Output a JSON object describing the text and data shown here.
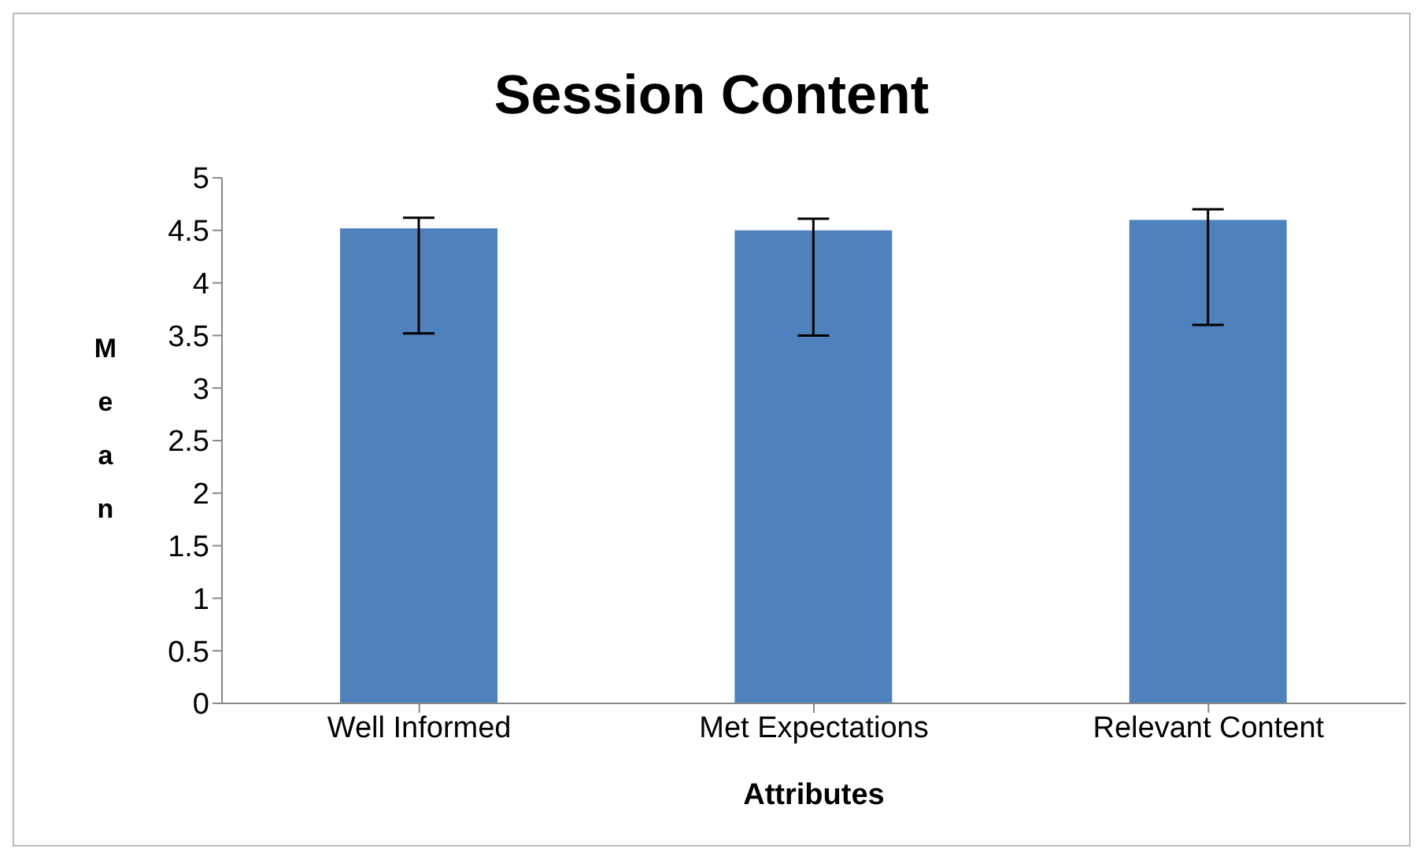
{
  "chart_data": {
    "type": "bar",
    "title": "Session Content",
    "xlabel": "Attributes",
    "ylabel": "Mean",
    "categories": [
      "Well Informed",
      "Met Expectations",
      "Relevant Content"
    ],
    "values": [
      4.52,
      4.5,
      4.6
    ],
    "errors": [
      [
        3.52,
        4.62
      ],
      [
        3.5,
        4.61
      ],
      [
        3.6,
        4.7
      ]
    ],
    "color": "#4f81bd",
    "ylim": [
      0,
      5
    ],
    "yticks": [
      0,
      0.5,
      1,
      1.5,
      2,
      2.5,
      3,
      3.5,
      4,
      4.5,
      5
    ],
    "grid": false,
    "legend": false
  }
}
